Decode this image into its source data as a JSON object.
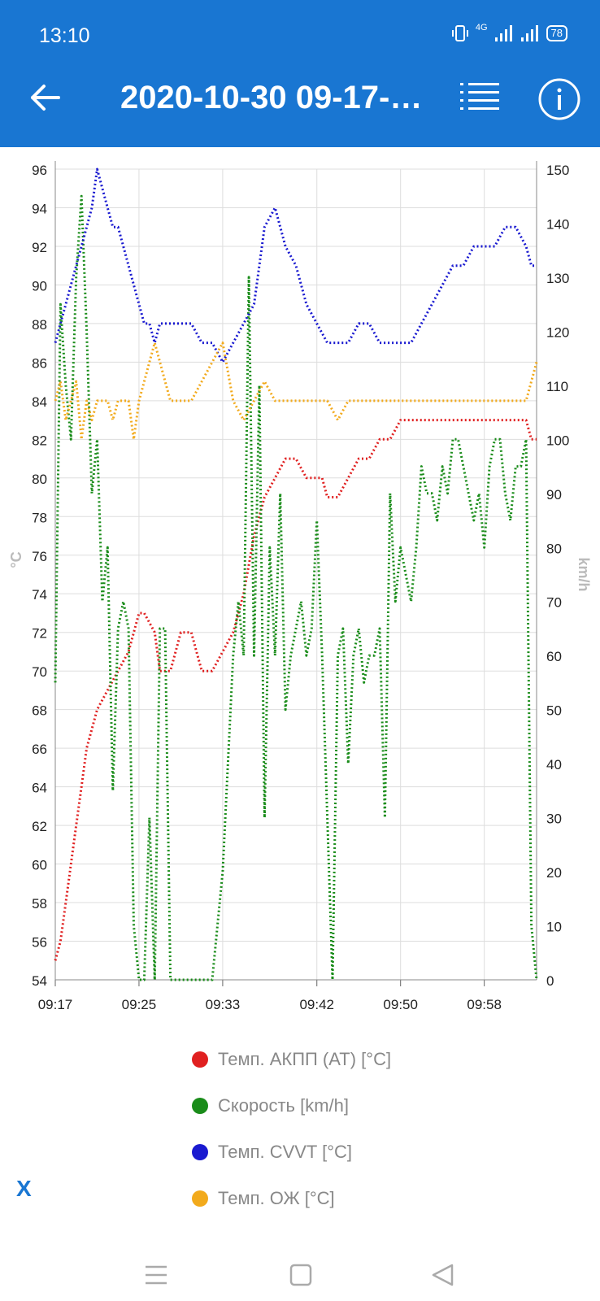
{
  "status_bar": {
    "time": "13:10",
    "network": "4G",
    "battery": "78"
  },
  "appbar": {
    "title": "2020-10-30 09-17-…"
  },
  "chart_data": {
    "type": "line",
    "x_ticks": [
      "09:17",
      "09:25",
      "09:33",
      "09:42",
      "09:50",
      "09:58"
    ],
    "xlim": [
      "09:17",
      "10:03"
    ],
    "y_left": {
      "label": "°C",
      "ticks": [
        96,
        94,
        92,
        90,
        88,
        86,
        84,
        82,
        80,
        78,
        76,
        74,
        72,
        70,
        68,
        66,
        64,
        62,
        60,
        58,
        56,
        54
      ],
      "ylim": [
        54,
        96
      ]
    },
    "y_right": {
      "label": "km/h",
      "ticks": [
        150,
        140,
        130,
        120,
        110,
        100,
        90,
        80,
        70,
        60,
        50,
        40,
        30,
        20,
        10,
        0
      ],
      "ylim": [
        0,
        150
      ]
    },
    "grid": true,
    "series": [
      {
        "name": "Темп. АКПП (AT) [°C]",
        "color": "#e02020",
        "axis": "left",
        "x": [
          0,
          0.5,
          1,
          1.5,
          2,
          2.5,
          3,
          4,
          5,
          6,
          7,
          8,
          8.5,
          9.5,
          10,
          11,
          12,
          13,
          13.5,
          14,
          15,
          16,
          17,
          18,
          19,
          20,
          21,
          22,
          23,
          24,
          24.5,
          25,
          25.5,
          26,
          27,
          28,
          29,
          30,
          31,
          32,
          33,
          34,
          35,
          36,
          37,
          38,
          39,
          40,
          41,
          42,
          43,
          44,
          45,
          45.5,
          46
        ],
        "values": [
          55,
          56,
          58,
          60,
          62,
          64,
          66,
          68,
          69,
          70,
          71,
          73,
          73,
          72,
          70,
          70,
          72,
          72,
          71,
          70,
          70,
          71,
          72,
          74,
          77,
          79,
          80,
          81,
          81,
          80,
          80,
          80,
          80,
          79,
          79,
          80,
          81,
          81,
          82,
          82,
          83,
          83,
          83,
          83,
          83,
          83,
          83,
          83,
          83,
          83,
          83,
          83,
          83,
          82,
          82
        ]
      },
      {
        "name": "Скорость [km/h]",
        "color": "#1a8c1a",
        "axis": "right",
        "x": [
          0,
          0.5,
          1,
          1.5,
          2,
          2.5,
          3,
          3.5,
          4,
          4.5,
          5,
          5.5,
          6,
          6.5,
          7,
          7.5,
          8,
          8.5,
          9,
          9.5,
          10,
          10.5,
          11,
          11.5,
          12,
          12.5,
          13,
          14,
          15,
          16,
          17,
          17.5,
          18,
          18.5,
          19,
          19.5,
          20,
          20.5,
          21,
          21.5,
          22,
          22.5,
          23,
          23.5,
          24,
          24.5,
          25,
          25.5,
          26,
          26.5,
          27,
          27.5,
          28,
          28.5,
          29,
          29.5,
          30,
          30.5,
          31,
          31.5,
          32,
          32.5,
          33,
          33.5,
          34,
          34.5,
          35,
          35.5,
          36,
          36.5,
          37,
          37.5,
          38,
          38.5,
          39,
          39.5,
          40,
          40.5,
          41,
          41.5,
          42,
          42.5,
          43,
          43.5,
          44,
          44.5,
          45,
          45.5,
          46
        ],
        "values": [
          55,
          125,
          110,
          100,
          130,
          145,
          120,
          90,
          100,
          70,
          80,
          35,
          65,
          70,
          65,
          10,
          0,
          0,
          30,
          0,
          65,
          65,
          0,
          0,
          0,
          0,
          0,
          0,
          0,
          20,
          60,
          70,
          60,
          130,
          60,
          110,
          30,
          80,
          60,
          90,
          50,
          60,
          65,
          70,
          60,
          65,
          85,
          60,
          30,
          0,
          60,
          65,
          40,
          60,
          65,
          55,
          60,
          60,
          65,
          30,
          90,
          70,
          80,
          75,
          70,
          80,
          95,
          90,
          90,
          85,
          95,
          90,
          100,
          100,
          95,
          90,
          85,
          90,
          80,
          95,
          100,
          100,
          90,
          85,
          95,
          95,
          100,
          10,
          0
        ]
      },
      {
        "name": "Темп. CVVT [°C]",
        "color": "#1a1ad0",
        "axis": "left",
        "x": [
          0,
          0.5,
          1,
          1.5,
          2,
          2.5,
          3,
          3.5,
          4,
          4.5,
          5,
          5.5,
          6,
          6.5,
          7,
          7.5,
          8,
          8.5,
          9,
          9.5,
          10,
          10.5,
          11,
          11.5,
          12,
          12.5,
          13,
          14,
          15,
          16,
          17,
          18,
          19,
          20,
          21,
          22,
          23,
          24,
          25,
          26,
          27,
          28,
          29,
          30,
          31,
          32,
          33,
          34,
          35,
          36,
          37,
          38,
          39,
          40,
          41,
          42,
          43,
          44,
          45,
          45.5,
          46
        ],
        "values": [
          87,
          88,
          89,
          90,
          91,
          92,
          93,
          94,
          96,
          95,
          94,
          93,
          93,
          92,
          91,
          90,
          89,
          88,
          88,
          87,
          88,
          88,
          88,
          88,
          88,
          88,
          88,
          87,
          87,
          86,
          87,
          88,
          89,
          93,
          94,
          92,
          91,
          89,
          88,
          87,
          87,
          87,
          88,
          88,
          87,
          87,
          87,
          87,
          88,
          89,
          90,
          91,
          91,
          92,
          92,
          92,
          93,
          93,
          92,
          91,
          91
        ]
      },
      {
        "name": "Темп. ОЖ [°C]",
        "color": "#f2aa1c",
        "axis": "left",
        "x": [
          0,
          0.5,
          1,
          1.5,
          2,
          2.5,
          3,
          3.5,
          4,
          4.5,
          5,
          5.5,
          6,
          6.5,
          7,
          7.5,
          8,
          8.5,
          9,
          9.5,
          10,
          10.5,
          11,
          11.5,
          12,
          12.5,
          13,
          14,
          15,
          16,
          17,
          18,
          19,
          20,
          21,
          22,
          23,
          24,
          25,
          26,
          27,
          28,
          29,
          30,
          31,
          32,
          33,
          34,
          35,
          36,
          37,
          38,
          39,
          40,
          41,
          42,
          43,
          44,
          45,
          46
        ],
        "values": [
          84,
          85,
          83,
          84,
          85,
          82,
          84,
          83,
          84,
          84,
          84,
          83,
          84,
          84,
          84,
          82,
          84,
          85,
          86,
          87,
          86,
          85,
          84,
          84,
          84,
          84,
          84,
          85,
          86,
          87,
          84,
          83,
          84,
          85,
          84,
          84,
          84,
          84,
          84,
          84,
          83,
          84,
          84,
          84,
          84,
          84,
          84,
          84,
          84,
          84,
          84,
          84,
          84,
          84,
          84,
          84,
          84,
          84,
          84,
          86
        ]
      }
    ]
  },
  "legend": [
    {
      "label": "Темп. АКПП (AT) [°C]",
      "color": "#e02020"
    },
    {
      "label": "Скорость [km/h]",
      "color": "#1a8c1a"
    },
    {
      "label": "Темп. CVVT [°C]",
      "color": "#1a1ad0"
    },
    {
      "label": "Темп. ОЖ [°C]",
      "color": "#f2aa1c"
    }
  ],
  "close_button": {
    "label": "X"
  },
  "navbar": {
    "icons": [
      "menu-icon",
      "home-icon",
      "back-triangle-icon"
    ]
  }
}
